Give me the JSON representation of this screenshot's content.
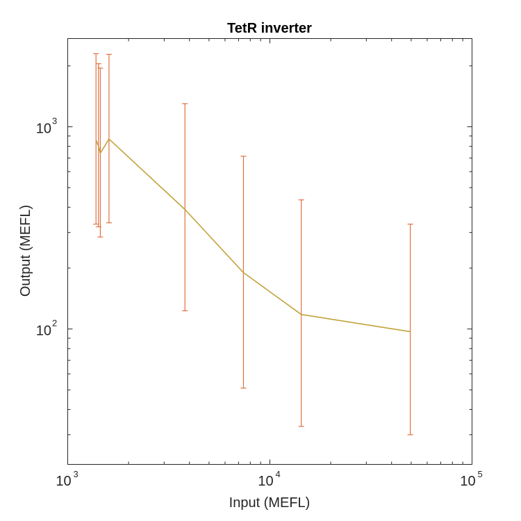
{
  "chart_data": {
    "type": "line",
    "title": "TetR inverter",
    "xlabel": "Input (MEFL)",
    "ylabel": "Output (MEFL)",
    "xscale": "log",
    "yscale": "log",
    "xlim": [
      1000,
      100000
    ],
    "ylim": [
      21.4,
      2730
    ],
    "x_ticks": [
      {
        "base": "10",
        "exp": "3",
        "value": 1000
      },
      {
        "base": "10",
        "exp": "4",
        "value": 10000
      },
      {
        "base": "10",
        "exp": "5",
        "value": 100000
      }
    ],
    "y_ticks": [
      {
        "base": "10",
        "exp": "2",
        "value": 100
      },
      {
        "base": "10",
        "exp": "3",
        "value": 1000
      }
    ],
    "grid": false,
    "line_color": "#c1a23a",
    "errorbar_color": "#e0703f",
    "series": [
      {
        "x": [
          1380,
          1420,
          1450,
          1600,
          3800,
          7400,
          14300,
          49500
        ],
        "y": [
          860,
          800,
          740,
          870,
          390,
          190,
          118,
          97
        ],
        "y_lower": [
          330,
          320,
          285,
          335,
          123,
          51,
          33,
          30
        ],
        "y_upper": [
          2300,
          2050,
          1950,
          2280,
          1300,
          715,
          435,
          330
        ]
      }
    ]
  }
}
